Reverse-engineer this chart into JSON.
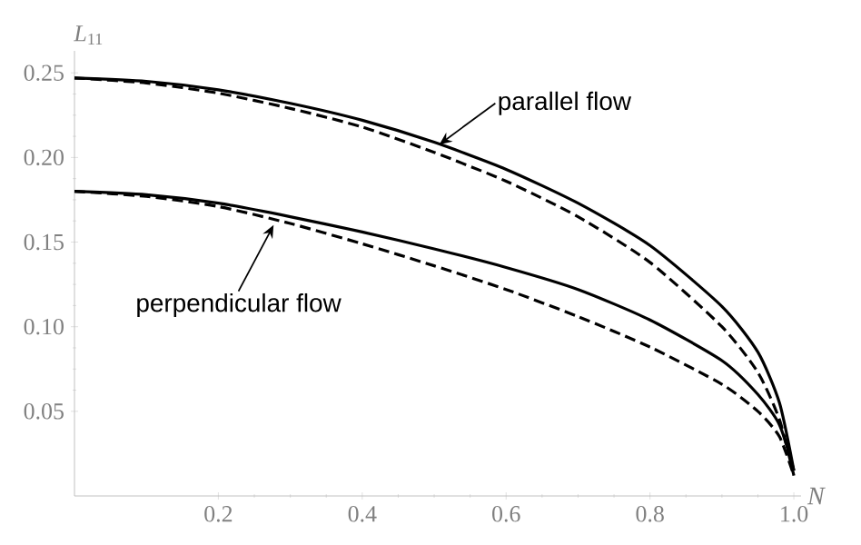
{
  "chart_data": {
    "type": "line",
    "xlabel": "N",
    "ylabel": "*L*$_{11}$",
    "xlim": [
      0,
      1.01
    ],
    "ylim": [
      0,
      0.263
    ],
    "xticks": [
      0.2,
      0.4,
      0.6,
      0.8,
      {
        "value": 1.0,
        "label": "1.0"
      }
    ],
    "yticks": [
      0.05,
      {
        "value": 0.1,
        "label": "0.10"
      },
      0.15,
      {
        "value": 0.2,
        "label": "0.20"
      },
      0.25
    ],
    "grid": false,
    "marker": "none",
    "x": [
      0,
      0.1,
      0.2,
      0.3,
      0.4,
      0.5,
      0.6,
      0.7,
      0.8,
      0.9,
      0.95,
      0.98,
      1.0
    ],
    "series": [
      {
        "color": "#000000",
        "line_style": "solid",
        "values": [
          0.247,
          0.245,
          0.24,
          0.232,
          0.222,
          0.209,
          0.193,
          0.173,
          0.148,
          0.112,
          0.085,
          0.055,
          0.015
        ]
      },
      {
        "color": "#000000",
        "line_style": "dashed",
        "values": [
          0.247,
          0.244,
          0.238,
          0.229,
          0.218,
          0.203,
          0.186,
          0.165,
          0.138,
          0.1,
          0.073,
          0.045,
          0.012
        ]
      },
      {
        "color": "#000000",
        "line_style": "solid",
        "values": [
          0.18,
          0.178,
          0.173,
          0.165,
          0.156,
          0.146,
          0.135,
          0.122,
          0.104,
          0.08,
          0.06,
          0.042,
          0.015
        ]
      },
      {
        "color": "#000000",
        "line_style": "dashed",
        "values": [
          0.18,
          0.177,
          0.171,
          0.161,
          0.149,
          0.136,
          0.122,
          0.106,
          0.088,
          0.066,
          0.05,
          0.035,
          0.012
        ]
      }
    ],
    "annotations": [
      {
        "text": "parallel flow",
        "x": 0.505,
        "y": 0.207
      },
      {
        "text": "perpendicular flow",
        "x": 0.278,
        "y": 0.161
      }
    ]
  }
}
